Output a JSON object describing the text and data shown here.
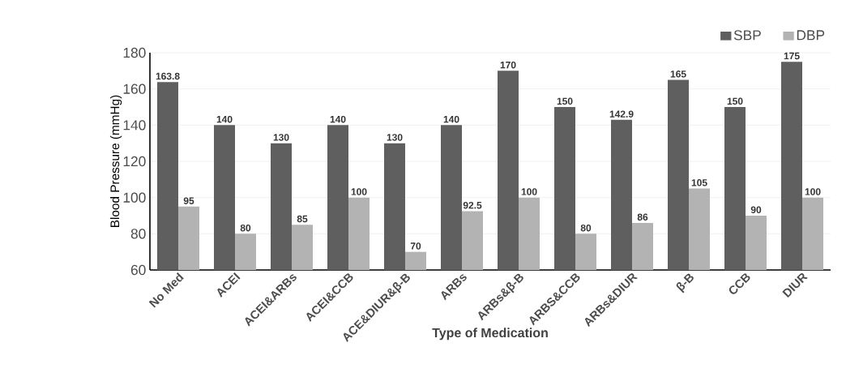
{
  "chart_data": {
    "type": "bar",
    "xlabel": "Type of Medication",
    "ylabel": "Blood Pressure (mmHg)",
    "categories": [
      "No Med",
      "ACEI",
      "ACEI&ARBs",
      "ACEI&CCB",
      "ACE&DIUR&β-B",
      "ARBs",
      "ARBs&β-B",
      "ARBS&CCB",
      "ARBs&DIUR",
      "β-B",
      "CCB",
      "DIUR"
    ],
    "series": [
      {
        "name": "SBP",
        "color": "#5f5f5f",
        "values": [
          163.8,
          140,
          130,
          140,
          130,
          140,
          170,
          150,
          142.9,
          165,
          150,
          175
        ]
      },
      {
        "name": "DBP",
        "color": "#b3b3b3",
        "values": [
          95,
          80,
          85,
          100,
          70,
          92.5,
          100,
          80,
          86,
          105,
          90,
          100
        ]
      }
    ],
    "ylim": [
      60,
      180
    ],
    "yticks": [
      60,
      80,
      100,
      120,
      140,
      160,
      180
    ],
    "grid": "y",
    "legend": "top right",
    "data_labels": true
  }
}
